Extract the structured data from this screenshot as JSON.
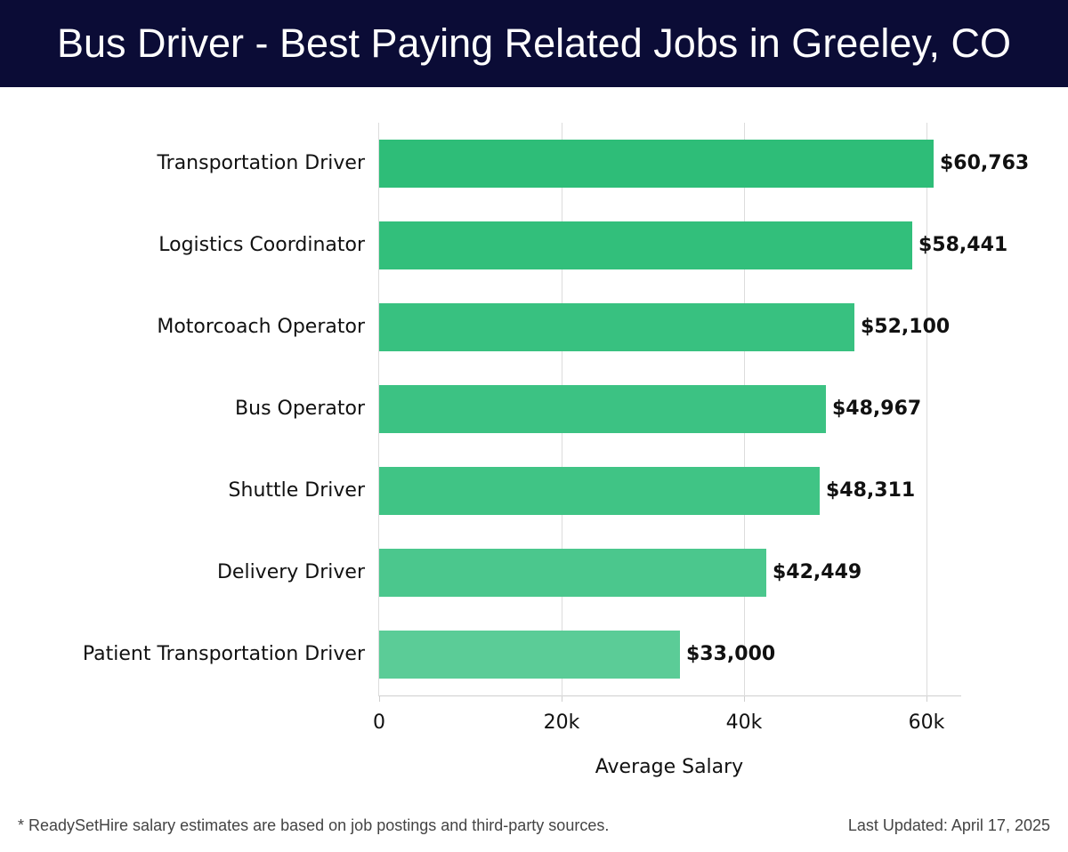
{
  "header": {
    "title": "Bus Driver - Best Paying Related Jobs in Greeley, CO"
  },
  "footer": {
    "note": "* ReadySetHire salary estimates are based on job postings and third-party sources.",
    "updated": "Last Updated: April 17, 2025"
  },
  "colors": {
    "header_bg": "#0b0c36",
    "bars": [
      "#2ebd78",
      "#32bf7b",
      "#38c180",
      "#3cc283",
      "#40c485",
      "#4bc78d",
      "#5bcc97"
    ]
  },
  "chart_data": {
    "type": "bar",
    "orientation": "horizontal",
    "title": "Bus Driver - Best Paying Related Jobs in Greeley, CO",
    "xlabel": "Average Salary",
    "ylabel": "",
    "categories": [
      "Transportation Driver",
      "Logistics Coordinator",
      "Motorcoach Operator",
      "Bus Operator",
      "Shuttle Driver",
      "Delivery Driver",
      "Patient Transportation Driver"
    ],
    "values": [
      60763,
      58441,
      52100,
      48967,
      48311,
      42449,
      33000
    ],
    "value_labels": [
      "$60,763",
      "$58,441",
      "$52,100",
      "$48,967",
      "$48,311",
      "$42,449",
      "$33,000"
    ],
    "xticks": [
      0,
      20000,
      40000,
      60000
    ],
    "xtick_labels": [
      "0",
      "20k",
      "40k",
      "60k"
    ],
    "xlim": [
      0,
      63800
    ],
    "grid": "vertical",
    "legend": "none"
  }
}
